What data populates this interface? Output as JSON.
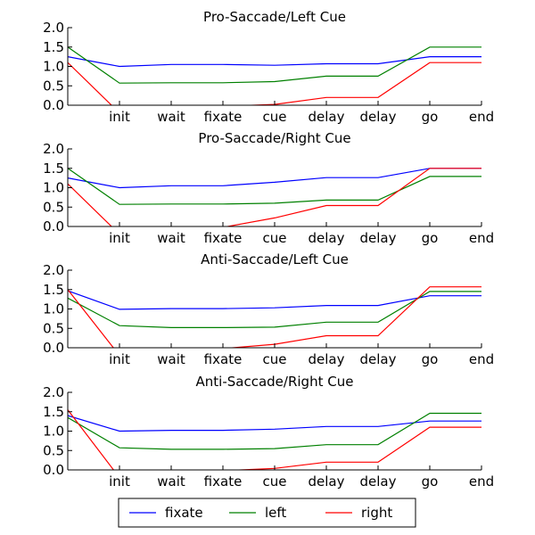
{
  "chart_data": [
    {
      "type": "line",
      "title": "Pro-Saccade/Left Cue",
      "x": [
        0,
        1,
        2,
        3,
        4,
        5,
        6,
        7,
        8
      ],
      "categories": [
        "",
        "init",
        "wait",
        "fixate",
        "cue",
        "delay",
        "delay",
        "go",
        "end"
      ],
      "ylim": [
        0,
        2.0
      ],
      "yticks": [
        "0.0",
        "0.5",
        "1.0",
        "1.5",
        "2.0"
      ],
      "series": [
        {
          "name": "fixate",
          "color": "#0000ff",
          "values": [
            1.25,
            1.0,
            1.05,
            1.05,
            1.03,
            1.07,
            1.07,
            1.25,
            1.25
          ]
        },
        {
          "name": "left",
          "color": "#008000",
          "values": [
            1.5,
            0.57,
            0.58,
            0.58,
            0.61,
            0.75,
            0.75,
            1.5,
            1.5
          ]
        },
        {
          "name": "right",
          "color": "#ff0000",
          "values": [
            1.1,
            -0.2,
            -0.05,
            -0.03,
            0.02,
            0.2,
            0.2,
            1.1,
            1.1
          ]
        }
      ]
    },
    {
      "type": "line",
      "title": "Pro-Saccade/Right Cue",
      "x": [
        0,
        1,
        2,
        3,
        4,
        5,
        6,
        7,
        8
      ],
      "categories": [
        "",
        "init",
        "wait",
        "fixate",
        "cue",
        "delay",
        "delay",
        "go",
        "end"
      ],
      "ylim": [
        0,
        2.0
      ],
      "yticks": [
        "0.0",
        "0.5",
        "1.0",
        "1.5",
        "2.0"
      ],
      "series": [
        {
          "name": "fixate",
          "color": "#0000ff",
          "values": [
            1.25,
            1.0,
            1.05,
            1.05,
            1.14,
            1.26,
            1.26,
            1.5,
            1.5
          ]
        },
        {
          "name": "left",
          "color": "#008000",
          "values": [
            1.5,
            0.57,
            0.58,
            0.58,
            0.6,
            0.68,
            0.68,
            1.29,
            1.29
          ]
        },
        {
          "name": "right",
          "color": "#ff0000",
          "values": [
            1.1,
            -0.2,
            -0.05,
            -0.02,
            0.22,
            0.54,
            0.54,
            1.5,
            1.5
          ]
        }
      ]
    },
    {
      "type": "line",
      "title": "Anti-Saccade/Left Cue",
      "x": [
        0,
        1,
        2,
        3,
        4,
        5,
        6,
        7,
        8
      ],
      "categories": [
        "",
        "init",
        "wait",
        "fixate",
        "cue",
        "delay",
        "delay",
        "go",
        "end"
      ],
      "ylim": [
        0,
        2.0
      ],
      "yticks": [
        "0.0",
        "0.5",
        "1.0",
        "1.5",
        "2.0"
      ],
      "series": [
        {
          "name": "fixate",
          "color": "#0000ff",
          "values": [
            1.47,
            0.99,
            1.01,
            1.01,
            1.03,
            1.09,
            1.09,
            1.34,
            1.34
          ]
        },
        {
          "name": "left",
          "color": "#008000",
          "values": [
            1.28,
            0.57,
            0.52,
            0.52,
            0.53,
            0.66,
            0.66,
            1.45,
            1.45
          ]
        },
        {
          "name": "right",
          "color": "#ff0000",
          "values": [
            1.5,
            -0.2,
            -0.05,
            -0.02,
            0.09,
            0.31,
            0.31,
            1.57,
            1.57
          ]
        }
      ]
    },
    {
      "type": "line",
      "title": "Anti-Saccade/Right Cue",
      "x": [
        0,
        1,
        2,
        3,
        4,
        5,
        6,
        7,
        8
      ],
      "categories": [
        "",
        "init",
        "wait",
        "fixate",
        "cue",
        "delay",
        "delay",
        "go",
        "end"
      ],
      "ylim": [
        0,
        2.0
      ],
      "yticks": [
        "0.0",
        "0.5",
        "1.0",
        "1.5",
        "2.0"
      ],
      "series": [
        {
          "name": "fixate",
          "color": "#0000ff",
          "values": [
            1.4,
            1.0,
            1.02,
            1.02,
            1.05,
            1.12,
            1.12,
            1.26,
            1.26
          ]
        },
        {
          "name": "left",
          "color": "#008000",
          "values": [
            1.35,
            0.57,
            0.53,
            0.53,
            0.55,
            0.65,
            0.65,
            1.46,
            1.46
          ]
        },
        {
          "name": "right",
          "color": "#ff0000",
          "values": [
            1.55,
            -0.2,
            -0.05,
            -0.02,
            0.04,
            0.2,
            0.2,
            1.1,
            1.1
          ]
        }
      ]
    }
  ],
  "legend": {
    "placement": "bottom-center",
    "entries": [
      {
        "label": "fixate",
        "color": "#0000ff"
      },
      {
        "label": "left",
        "color": "#008000"
      },
      {
        "label": "right",
        "color": "#ff0000"
      }
    ]
  }
}
